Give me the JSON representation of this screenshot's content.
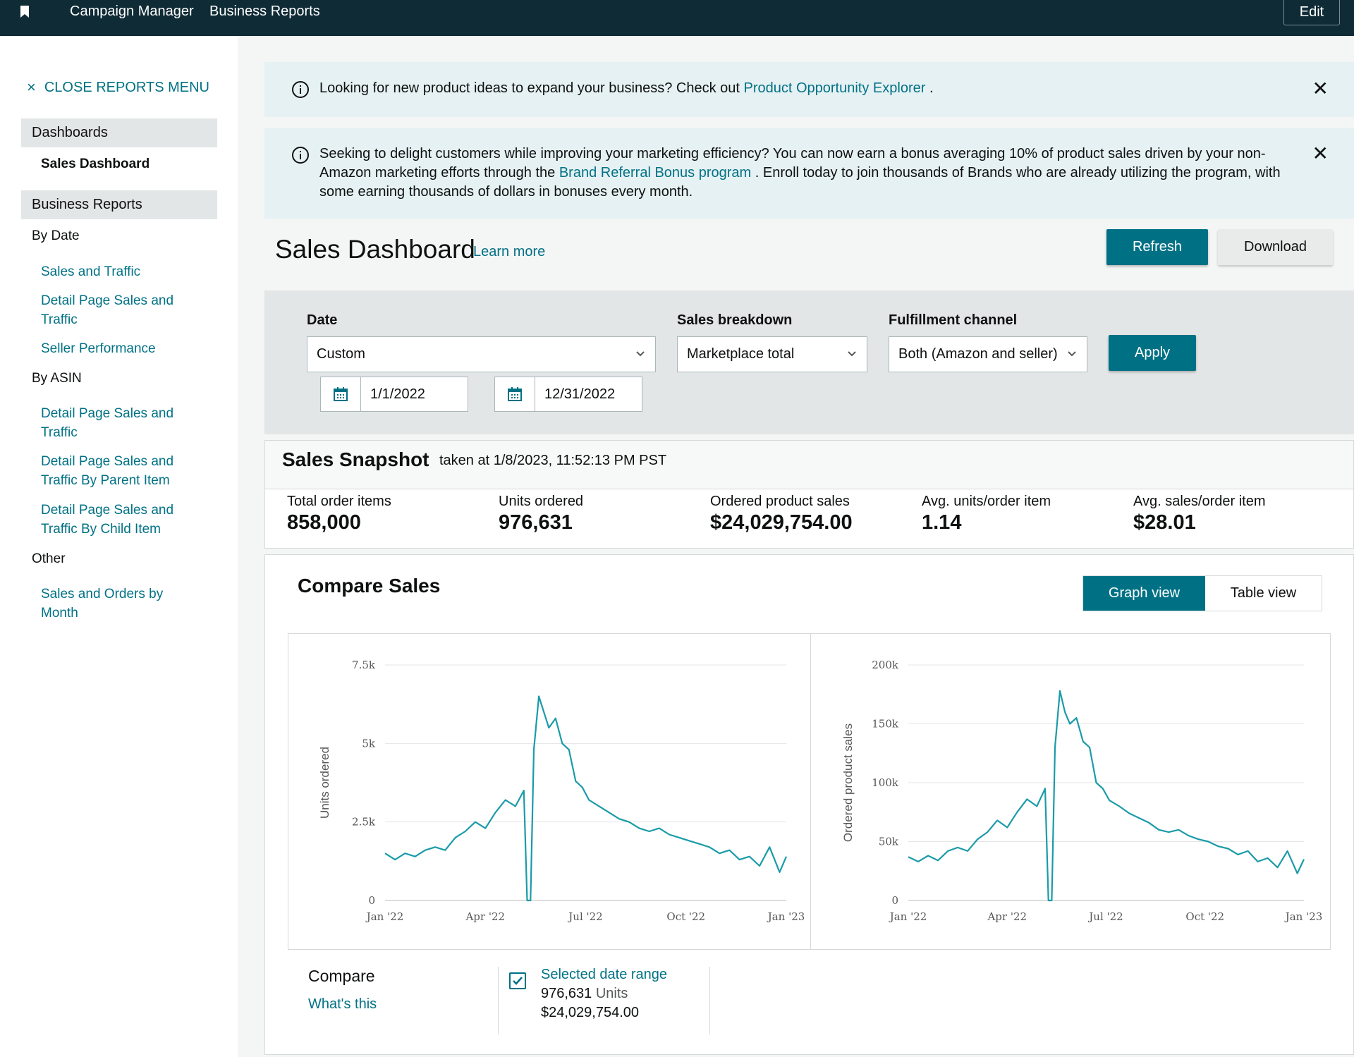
{
  "topnav": {
    "links": [
      "Campaign Manager",
      "Business Reports"
    ],
    "edit_label": "Edit"
  },
  "sidebar": {
    "close_label": "CLOSE REPORTS MENU",
    "dashboards_label": "Dashboards",
    "active_item": "Sales Dashboard",
    "business_reports_label": "Business Reports",
    "by_date_label": "By Date",
    "by_date_items": [
      "Sales and Traffic",
      "Detail Page Sales and Traffic",
      "Seller Performance"
    ],
    "by_asin_label": "By ASIN",
    "by_asin_items": [
      "Detail Page Sales and Traffic",
      "Detail Page Sales and Traffic By Parent Item",
      "Detail Page Sales and Traffic By Child Item"
    ],
    "other_label": "Other",
    "other_items": [
      "Sales and Orders by Month"
    ]
  },
  "alerts": [
    {
      "text_before": "Looking for new product ideas to expand your business? Check out ",
      "link": "Product Opportunity Explorer",
      "text_after": " ."
    },
    {
      "text_before": "Seeking to delight customers while improving your marketing efficiency? You can now earn a bonus averaging 10% of product sales driven by your non-Amazon marketing efforts through the ",
      "link": "Brand Referral Bonus program",
      "text_after": " . Enroll today to join thousands of Brands who are already utilizing the program, with some earning thousands of dollars in bonuses every month."
    }
  ],
  "header": {
    "title": "Sales Dashboard",
    "learn_more": "Learn more",
    "refresh_label": "Refresh",
    "download_label": "Download"
  },
  "filters": {
    "date_label": "Date",
    "date_value": "Custom",
    "start_date": "1/1/2022",
    "end_date": "12/31/2022",
    "breakdown_label": "Sales breakdown",
    "breakdown_value": "Marketplace total",
    "fulfillment_label": "Fulfillment channel",
    "fulfillment_value": "Both (Amazon and seller)",
    "apply_label": "Apply"
  },
  "snapshot": {
    "title": "Sales Snapshot",
    "taken_at": "taken at 1/8/2023, 11:52:13 PM PST",
    "metrics": [
      {
        "label": "Total order items",
        "value": "858,000"
      },
      {
        "label": "Units ordered",
        "value": "976,631"
      },
      {
        "label": "Ordered product sales",
        "value": "$24,029,754.00"
      },
      {
        "label": "Avg. units/order item",
        "value": "1.14"
      },
      {
        "label": "Avg. sales/order item",
        "value": "$28.01"
      }
    ]
  },
  "compare": {
    "title": "Compare Sales",
    "graph_view": "Graph view",
    "table_view": "Table view",
    "compare_label": "Compare",
    "whats_this": "What's this",
    "range_name": "Selected date range",
    "range_units_value": "976,631",
    "range_units_label": "Units",
    "range_sales": "$24,029,754.00"
  },
  "colors": {
    "accent": "#007185",
    "line": "#1a9ba8",
    "nav": "#0f2b36"
  },
  "chart_data": [
    {
      "type": "line",
      "ylabel": "Units ordered",
      "y_ticks": [
        "0",
        "2.5k",
        "5k",
        "7.5k"
      ],
      "ylim": [
        0,
        7500
      ],
      "x_ticks": [
        "Jan '22",
        "Apr '22",
        "Jul '22",
        "Oct '22",
        "Jan '23"
      ],
      "xlim": [
        0,
        12
      ],
      "grid": true,
      "series": [
        {
          "x": [
            0,
            0.3,
            0.6,
            0.9,
            1.2,
            1.5,
            1.8,
            2.1,
            2.4,
            2.7,
            3.0,
            3.3,
            3.6,
            3.9,
            4.15,
            4.25,
            4.35,
            4.45,
            4.6,
            4.75,
            4.9,
            5.1,
            5.3,
            5.5,
            5.7,
            5.9,
            6.1,
            6.4,
            6.7,
            7.0,
            7.3,
            7.6,
            7.9,
            8.2,
            8.5,
            8.8,
            9.1,
            9.4,
            9.7,
            10.0,
            10.3,
            10.6,
            10.9,
            11.2,
            11.5,
            11.8,
            12.0
          ],
          "values": [
            1500,
            1300,
            1500,
            1400,
            1600,
            1700,
            1600,
            2000,
            2200,
            2500,
            2300,
            2800,
            3200,
            3000,
            3500,
            0,
            0,
            4800,
            6500,
            6000,
            5500,
            5800,
            5000,
            4800,
            3800,
            3600,
            3200,
            3000,
            2800,
            2600,
            2500,
            2300,
            2200,
            2300,
            2100,
            2000,
            1900,
            1800,
            1700,
            1500,
            1600,
            1300,
            1400,
            1100,
            1700,
            900,
            1400
          ]
        }
      ]
    },
    {
      "type": "line",
      "ylabel": "Ordered product sales",
      "y_ticks": [
        "0",
        "50k",
        "100k",
        "150k",
        "200k"
      ],
      "ylim": [
        0,
        200000
      ],
      "x_ticks": [
        "Jan '22",
        "Apr '22",
        "Jul '22",
        "Oct '22",
        "Jan '23"
      ],
      "xlim": [
        0,
        12
      ],
      "grid": true,
      "series": [
        {
          "x": [
            0,
            0.3,
            0.6,
            0.9,
            1.2,
            1.5,
            1.8,
            2.1,
            2.4,
            2.7,
            3.0,
            3.3,
            3.6,
            3.9,
            4.15,
            4.25,
            4.35,
            4.45,
            4.6,
            4.75,
            4.9,
            5.1,
            5.3,
            5.5,
            5.7,
            5.9,
            6.1,
            6.4,
            6.7,
            7.0,
            7.3,
            7.6,
            7.9,
            8.2,
            8.5,
            8.8,
            9.1,
            9.4,
            9.7,
            10.0,
            10.3,
            10.6,
            10.9,
            11.2,
            11.5,
            11.8,
            12.0
          ],
          "values": [
            37000,
            33000,
            38000,
            34000,
            42000,
            45000,
            42000,
            52000,
            58000,
            68000,
            62000,
            75000,
            86000,
            80000,
            95000,
            0,
            0,
            130000,
            178000,
            160000,
            150000,
            155000,
            135000,
            130000,
            100000,
            95000,
            85000,
            80000,
            74000,
            70000,
            66000,
            60000,
            58000,
            60000,
            55000,
            52000,
            50000,
            46000,
            44000,
            39000,
            42000,
            33000,
            36000,
            28000,
            42000,
            23000,
            35000
          ]
        }
      ]
    }
  ]
}
